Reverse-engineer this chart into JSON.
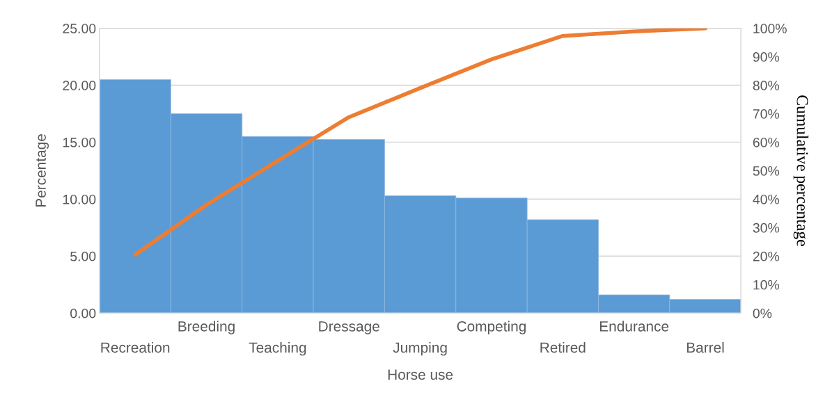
{
  "chart_data": {
    "type": "bar",
    "xlabel": "Horse use",
    "ylabel": "Percentage",
    "y2label": "Cumulative percentage",
    "categories": [
      "Recreation",
      "Breeding",
      "Teaching",
      "Dressage",
      "Jumping",
      "Competing",
      "Retired",
      "Endurance",
      "Barrel"
    ],
    "series": [
      {
        "color": "#5b9bd5",
        "values": [
          20.5,
          17.5,
          15.5,
          15.25,
          10.3,
          10.1,
          8.2,
          1.6,
          1.2
        ]
      },
      {
        "type": "line",
        "axis": "y2",
        "color": "#ed7d31",
        "values": [
          20.5,
          38,
          53.5,
          68.8,
          79,
          89.1,
          97.3,
          98.9,
          100
        ]
      }
    ],
    "ylim": [
      0,
      25
    ],
    "yticks": [
      {
        "value": 0,
        "label": "0.00"
      },
      {
        "value": 5,
        "label": "5.00"
      },
      {
        "value": 10,
        "label": "10.00"
      },
      {
        "value": 15,
        "label": "15.00"
      },
      {
        "value": 20,
        "label": "20.00"
      },
      {
        "value": 25,
        "label": "25.00"
      }
    ],
    "y2lim": [
      0,
      100
    ],
    "y2ticks": [
      {
        "value": 0,
        "label": "0%"
      },
      {
        "value": 10,
        "label": "10%"
      },
      {
        "value": 20,
        "label": "20%"
      },
      {
        "value": 30,
        "label": "30%"
      },
      {
        "value": 40,
        "label": "40%"
      },
      {
        "value": 50,
        "label": "50%"
      },
      {
        "value": 60,
        "label": "60%"
      },
      {
        "value": 70,
        "label": "70%"
      },
      {
        "value": 80,
        "label": "80%"
      },
      {
        "value": 90,
        "label": "90%"
      },
      {
        "value": 100,
        "label": "100%"
      }
    ],
    "grid": "y",
    "marker": "none",
    "line_style": "solid"
  }
}
